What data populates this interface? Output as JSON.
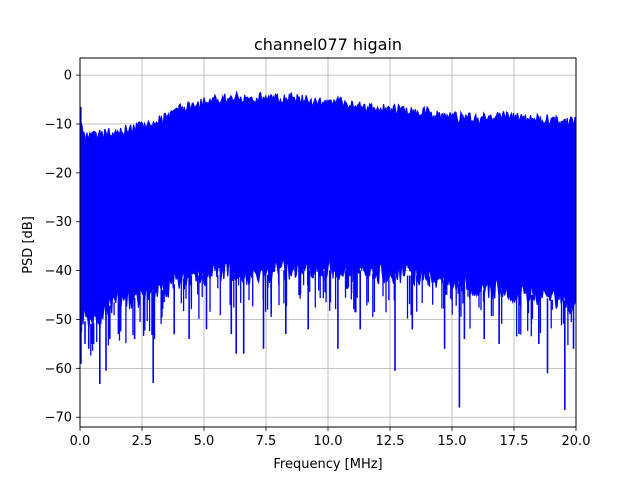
{
  "chart_data": {
    "type": "line",
    "title": "channel077 higain",
    "xlabel": "Frequency [MHz]",
    "ylabel": "PSD [dB]",
    "xlim": [
      0.0,
      20.0
    ],
    "ylim": [
      -72,
      3.5
    ],
    "xticks": [
      0.0,
      2.5,
      5.0,
      7.5,
      10.0,
      12.5,
      15.0,
      17.5,
      20.0
    ],
    "xtick_labels": [
      "0.0",
      "2.5",
      "5.0",
      "7.5",
      "10.0",
      "12.5",
      "15.0",
      "17.5",
      "20.0"
    ],
    "yticks": [
      0,
      -10,
      -20,
      -30,
      -40,
      -50,
      -60,
      -70
    ],
    "ytick_labels": [
      "0",
      "−10",
      "−20",
      "−30",
      "−40",
      "−50",
      "−60",
      "−70"
    ],
    "grid": true,
    "legend": "none",
    "series": [
      {
        "color": "#0000ff",
        "upper_envelope": {
          "x": [
            0.0,
            0.05,
            0.2,
            0.5,
            1.0,
            1.5,
            2.0,
            2.5,
            3.0,
            3.5,
            4.0,
            4.5,
            5.0,
            5.5,
            6.0,
            6.5,
            7.0,
            7.5,
            8.0,
            8.5,
            9.0,
            9.5,
            10.0,
            10.5,
            11.0,
            11.5,
            12.0,
            12.5,
            13.0,
            13.5,
            14.0,
            14.5,
            15.0,
            15.5,
            16.0,
            16.5,
            17.0,
            17.5,
            18.0,
            18.5,
            19.0,
            19.5,
            20.0
          ],
          "y": [
            -6.5,
            -10,
            -11.5,
            -11.5,
            -11,
            -10.5,
            -10,
            -9.5,
            -8.5,
            -7.5,
            -6,
            -5,
            -4.5,
            -4,
            -3.5,
            -3.5,
            -3.5,
            -3.5,
            -4,
            -3.5,
            -4,
            -4.5,
            -4.5,
            -4.5,
            -5,
            -5.5,
            -5.5,
            -6,
            -6,
            -6.5,
            -6.5,
            -7.5,
            -7.5,
            -7.5,
            -8,
            -7.5,
            -7.5,
            -7.5,
            -8,
            -8,
            -8,
            -8.5,
            -8.5
          ]
        },
        "lower_envelope": {
          "x": [
            0.0,
            0.5,
            1.0,
            1.5,
            2.0,
            2.5,
            3.0,
            3.5,
            4.0,
            4.5,
            5.0,
            5.5,
            6.0,
            6.5,
            7.0,
            7.5,
            8.0,
            8.5,
            9.0,
            9.5,
            10.0,
            10.5,
            11.0,
            11.5,
            12.0,
            12.5,
            13.0,
            13.5,
            14.0,
            14.5,
            15.0,
            15.5,
            16.0,
            16.5,
            17.0,
            17.5,
            18.0,
            18.5,
            19.0,
            19.5,
            20.0
          ],
          "y": [
            -52,
            -53,
            -50,
            -48,
            -48,
            -47,
            -46,
            -46,
            -44,
            -43,
            -43,
            -43,
            -42,
            -43,
            -43,
            -43,
            -42,
            -42,
            -42,
            -42,
            -42,
            -42,
            -42,
            -42,
            -43,
            -43,
            -43,
            -43,
            -43,
            -44,
            -44,
            -45,
            -46,
            -46,
            -46,
            -47,
            -47,
            -47,
            -48,
            -48,
            -50
          ]
        },
        "deep_dips": [
          {
            "x": 0.2,
            "y": -55
          },
          {
            "x": 0.35,
            "y": -56
          },
          {
            "x": 0.55,
            "y": -55
          },
          {
            "x": 0.8,
            "y": -63.2
          },
          {
            "x": 1.05,
            "y": -60.5
          },
          {
            "x": 1.2,
            "y": -54
          },
          {
            "x": 1.55,
            "y": -53
          },
          {
            "x": 2.2,
            "y": -54
          },
          {
            "x": 2.95,
            "y": -63
          },
          {
            "x": 3.0,
            "y": -54
          },
          {
            "x": 3.8,
            "y": -53
          },
          {
            "x": 4.4,
            "y": -54
          },
          {
            "x": 5.1,
            "y": -52
          },
          {
            "x": 6.1,
            "y": -53
          },
          {
            "x": 6.3,
            "y": -57
          },
          {
            "x": 6.6,
            "y": -57
          },
          {
            "x": 7.4,
            "y": -56
          },
          {
            "x": 8.3,
            "y": -53
          },
          {
            "x": 9.2,
            "y": -52
          },
          {
            "x": 10.4,
            "y": -56
          },
          {
            "x": 11.3,
            "y": -52
          },
          {
            "x": 12.7,
            "y": -60.5
          },
          {
            "x": 13.4,
            "y": -52
          },
          {
            "x": 14.7,
            "y": -56
          },
          {
            "x": 15.3,
            "y": -68
          },
          {
            "x": 15.5,
            "y": -54
          },
          {
            "x": 16.3,
            "y": -54
          },
          {
            "x": 16.9,
            "y": -55
          },
          {
            "x": 17.7,
            "y": -53
          },
          {
            "x": 18.5,
            "y": -55
          },
          {
            "x": 18.85,
            "y": -61
          },
          {
            "x": 19.55,
            "y": -68.5
          },
          {
            "x": 19.9,
            "y": -56
          }
        ]
      }
    ]
  }
}
